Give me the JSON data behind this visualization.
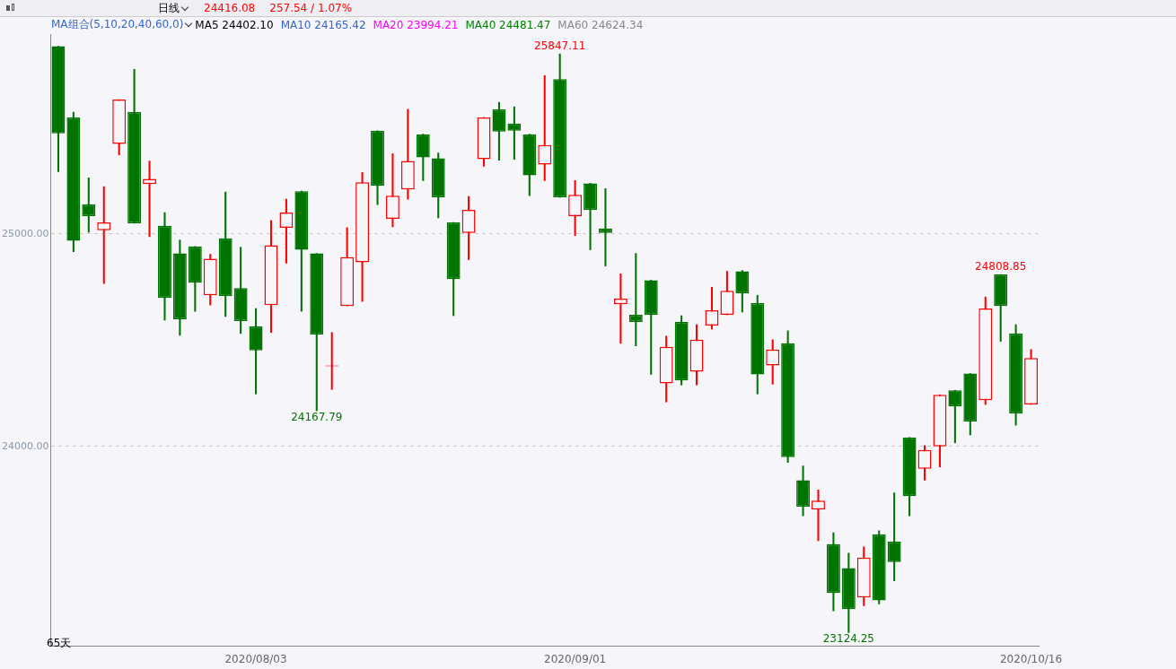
{
  "chart_data": {
    "type": "candlestick",
    "subtitle": "日线",
    "categories": [
      null,
      null,
      null,
      null,
      null,
      null,
      null,
      null,
      null,
      null,
      null,
      null,
      null,
      "2020/08/03",
      null,
      null,
      null,
      null,
      null,
      null,
      null,
      null,
      null,
      null,
      null,
      null,
      null,
      null,
      null,
      null,
      null,
      null,
      null,
      null,
      "2020/09/01",
      null,
      null,
      null,
      null,
      null,
      null,
      null,
      null,
      null,
      null,
      null,
      null,
      null,
      null,
      null,
      null,
      null,
      null,
      null,
      null,
      null,
      null,
      null,
      null,
      null,
      null,
      null,
      null,
      null,
      "2020/10/16"
    ],
    "ohlc": [
      [
        25883,
        25883,
        25293,
        25473
      ],
      [
        25548,
        25573,
        24916,
        24967
      ],
      [
        25138,
        25264,
        25008,
        25084
      ],
      [
        25017,
        25222,
        24766,
        25054
      ],
      [
        25423,
        25632,
        25372,
        25632
      ],
      [
        25573,
        25774,
        25050,
        25050
      ],
      [
        25234,
        25343,
        24987,
        25259
      ],
      [
        25038,
        25100,
        24594,
        24699
      ],
      [
        24908,
        24971,
        24523,
        24598
      ],
      [
        24941,
        24941,
        24636,
        24770
      ],
      [
        24711,
        24904,
        24665,
        24883
      ],
      [
        24979,
        25197,
        24611,
        24707
      ],
      [
        24745,
        24937,
        24531,
        24590
      ],
      [
        24565,
        24649,
        24247,
        24452
      ],
      [
        24665,
        25063,
        24536,
        24946
      ],
      [
        25029,
        25163,
        24862,
        25100
      ],
      [
        25201,
        25201,
        24636,
        24925
      ],
      [
        24908,
        24908,
        24167.79,
        24527
      ],
      [
        24377,
        24536,
        24268,
        24377
      ],
      [
        24661,
        25029,
        24661,
        24891
      ],
      [
        24866,
        25289,
        24682,
        25243
      ],
      [
        25485,
        25485,
        25138,
        25226
      ],
      [
        25071,
        25377,
        25033,
        25180
      ],
      [
        25209,
        25586,
        25163,
        25343
      ],
      [
        25469,
        25469,
        25251,
        25360
      ],
      [
        25356,
        25381,
        25075,
        25172
      ],
      [
        25054,
        25054,
        24615,
        24787
      ],
      [
        25004,
        25176,
        24879,
        25113
      ],
      [
        25351,
        25548,
        25318,
        25548
      ],
      [
        25586,
        25619,
        25347,
        25481
      ],
      [
        25519,
        25598,
        25351,
        25485
      ],
      [
        25469,
        25469,
        25180,
        25276
      ],
      [
        25326,
        25745,
        25251,
        25418
      ],
      [
        25728,
        25847.11,
        25172,
        25172
      ],
      [
        25084,
        25251,
        24992,
        25184
      ],
      [
        25238,
        25238,
        24925,
        25113
      ],
      [
        25025,
        25213,
        24849,
        25004
      ],
      [
        24669,
        24812,
        24485,
        24695
      ],
      [
        24619,
        24908,
        24473,
        24586
      ],
      [
        24782,
        24782,
        24339,
        24619
      ],
      [
        24297,
        24519,
        24209,
        24469
      ],
      [
        24586,
        24615,
        24289,
        24310
      ],
      [
        24352,
        24573,
        24289,
        24502
      ],
      [
        24569,
        24749,
        24552,
        24640
      ],
      [
        24619,
        24824,
        24619,
        24732
      ],
      [
        24824,
        24828,
        24632,
        24720
      ],
      [
        24674,
        24711,
        24247,
        24339
      ],
      [
        24381,
        24502,
        24293,
        24456
      ],
      [
        24485,
        24544,
        23925,
        23950
      ],
      [
        23841,
        23908,
        23674,
        23716
      ],
      [
        23703,
        23795,
        23557,
        23745
      ],
      [
        23540,
        23594,
        23226,
        23310
      ],
      [
        23427,
        23498,
        23124.25,
        23234
      ],
      [
        23289,
        23527,
        23251,
        23477
      ],
      [
        23586,
        23603,
        23259,
        23276
      ],
      [
        23552,
        23782,
        23368,
        23456
      ],
      [
        24042,
        24042,
        23674,
        23766
      ],
      [
        23895,
        24004,
        23841,
        23983
      ],
      [
        24000,
        24243,
        23904,
        24243
      ],
      [
        24264,
        24264,
        24017,
        24188
      ],
      [
        24343,
        24343,
        24054,
        24117
      ],
      [
        24218,
        24703,
        24197,
        24649
      ],
      [
        24808.85,
        24808.85,
        24494,
        24661
      ],
      [
        24531,
        24573,
        24100,
        24155
      ],
      [
        24197,
        24456,
        24197,
        24416.08
      ]
    ],
    "colors": [
      "#007400",
      "#007400",
      "#007400",
      "#ff0000",
      "#ff0000",
      "#007400",
      "#ff0000",
      "#007400",
      "#007400",
      "#007400",
      "#ff0000",
      "#007400",
      "#007400",
      "#007400",
      "#ff0000",
      "#ff0000",
      "#007400",
      "#007400",
      "#ff0000",
      "#ff0000",
      "#ff0000",
      "#007400",
      "#ff0000",
      "#ff0000",
      "#007400",
      "#007400",
      "#007400",
      "#ff0000",
      "#ff0000",
      "#007400",
      "#007400",
      "#007400",
      "#ff0000",
      "#007400",
      "#ff0000",
      "#007400",
      "#007400",
      "#ff0000",
      "#007400",
      "#007400",
      "#ff0000",
      "#007400",
      "#ff0000",
      "#ff0000",
      "#ff0000",
      "#007400",
      "#007400",
      "#ff0000",
      "#007400",
      "#007400",
      "#ff0000",
      "#007400",
      "#007400",
      "#ff0000",
      "#007400",
      "#007400",
      "#007400",
      "#ff0000",
      "#ff0000",
      "#007400",
      "#007400",
      "#ff0000",
      "#007400",
      "#007400",
      "#ff0000"
    ],
    "ylim": [
      23060,
      25940
    ],
    "yticks": [
      {
        "value": 24000,
        "label": "24000.00"
      },
      {
        "value": 25000,
        "label": "25000.00"
      }
    ],
    "grid": "y",
    "annotations": [
      "24416.08",
      "257.54 / 1.07%",
      "MA组合(5,10,20,40,60,0)",
      "MA5 24402.10",
      "MA10 24165.42",
      "MA20 23994.21",
      "MA40 24481.47",
      "MA60 24624.34",
      {
        "text": "25847.11",
        "y": 25847.11
      },
      {
        "text": "24167.79",
        "y": 24167.79
      },
      {
        "text": "24808.85",
        "y": 24808.85
      },
      {
        "text": "23124.25",
        "y": 23124.25
      },
      "65天"
    ]
  }
}
